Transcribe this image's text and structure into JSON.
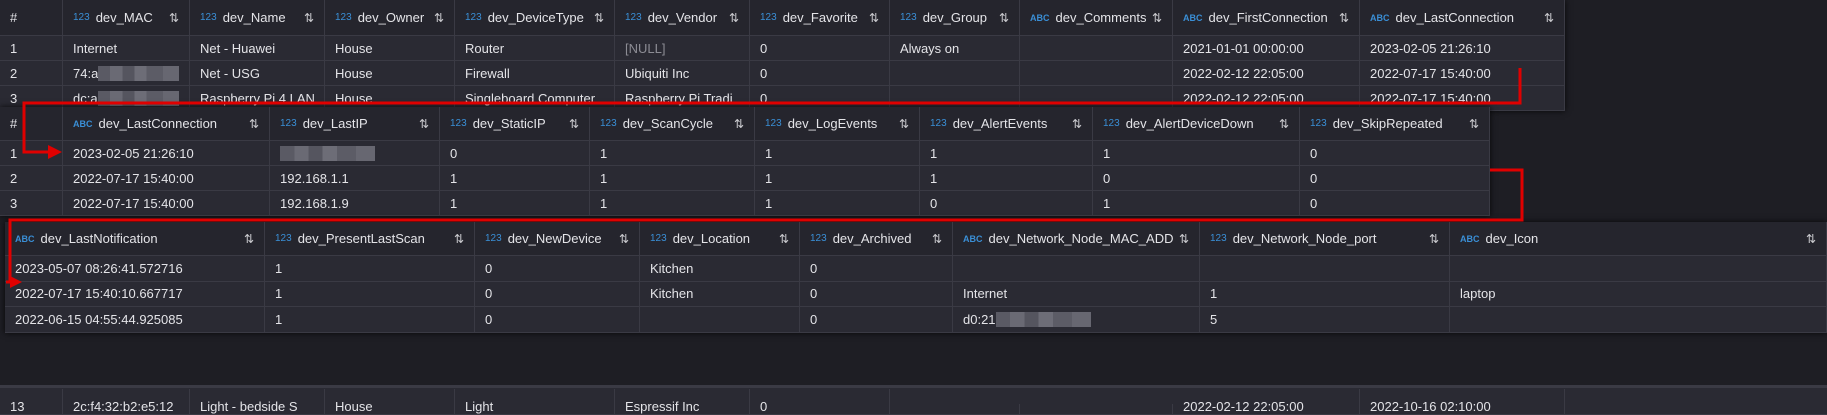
{
  "tables": [
    {
      "id": "table-devices-part1",
      "columns": [
        {
          "label": "#",
          "type": ""
        },
        {
          "label": "dev_MAC",
          "type": "123"
        },
        {
          "label": "dev_Name",
          "type": "123"
        },
        {
          "label": "dev_Owner",
          "type": "123"
        },
        {
          "label": "dev_DeviceType",
          "type": "123"
        },
        {
          "label": "dev_Vendor",
          "type": "123"
        },
        {
          "label": "dev_Favorite",
          "type": "123"
        },
        {
          "label": "dev_Group",
          "type": "123"
        },
        {
          "label": "dev_Comments",
          "type": "ABC"
        },
        {
          "label": "dev_FirstConnection",
          "type": "ABC"
        },
        {
          "label": "dev_LastConnection",
          "type": "ABC"
        }
      ],
      "rows": [
        [
          "1",
          "Internet",
          "Net - Huawei",
          "House",
          "Router",
          "[NULL]",
          "0",
          "Always on",
          "",
          "2021-01-01 00:00:00",
          "2023-02-05 21:26:10"
        ],
        [
          "2",
          "74:a",
          "Net - USG",
          "House",
          "Firewall",
          "Ubiquiti Inc",
          "0",
          "",
          "",
          "2022-02-12 22:05:00",
          "2022-07-17 15:40:00"
        ],
        [
          "3",
          "dc:a",
          "Raspberry Pi 4 LAN",
          "House",
          "Singleboard Computer ...",
          "Raspberry Pi Tradi...",
          "0",
          "",
          "",
          "2022-02-12 22:05:00",
          "2022-07-17 15:40:00"
        ]
      ],
      "blurred": [
        [
          1,
          1
        ],
        [
          2,
          1
        ]
      ]
    },
    {
      "id": "table-devices-part2",
      "columns": [
        {
          "label": "#",
          "type": ""
        },
        {
          "label": "dev_LastConnection",
          "type": "ABC"
        },
        {
          "label": "dev_LastIP",
          "type": "123"
        },
        {
          "label": "dev_StaticIP",
          "type": "123"
        },
        {
          "label": "dev_ScanCycle",
          "type": "123"
        },
        {
          "label": "dev_LogEvents",
          "type": "123"
        },
        {
          "label": "dev_AlertEvents",
          "type": "123"
        },
        {
          "label": "dev_AlertDeviceDown",
          "type": "123"
        },
        {
          "label": "dev_SkipRepeated",
          "type": "123"
        }
      ],
      "rows": [
        [
          "1",
          "2023-02-05 21:26:10",
          "",
          "0",
          "1",
          "1",
          "1",
          "1",
          "0"
        ],
        [
          "2",
          "2022-07-17 15:40:00",
          "192.168.1.1",
          "1",
          "1",
          "1",
          "1",
          "0",
          "0"
        ],
        [
          "3",
          "2022-07-17 15:40:00",
          "192.168.1.9",
          "1",
          "1",
          "1",
          "0",
          "1",
          "0"
        ]
      ],
      "blurred": [
        [
          0,
          2
        ]
      ]
    },
    {
      "id": "table-devices-part3",
      "columns": [
        {
          "label": "dev_LastNotification",
          "type": "ABC"
        },
        {
          "label": "dev_PresentLastScan",
          "type": "123"
        },
        {
          "label": "dev_NewDevice",
          "type": "123"
        },
        {
          "label": "dev_Location",
          "type": "123"
        },
        {
          "label": "dev_Archived",
          "type": "123"
        },
        {
          "label": "dev_Network_Node_MAC_ADDR",
          "type": "ABC"
        },
        {
          "label": "dev_Network_Node_port",
          "type": "123"
        },
        {
          "label": "dev_Icon",
          "type": "ABC"
        }
      ],
      "rows": [
        [
          "2023-05-07 08:26:41.572716",
          "1",
          "0",
          "Kitchen",
          "0",
          "",
          "",
          ""
        ],
        [
          "2022-07-17 15:40:10.667717",
          "1",
          "0",
          "Kitchen",
          "0",
          "Internet",
          "1",
          "laptop"
        ],
        [
          "2022-06-15 04:55:44.925085",
          "1",
          "0",
          "",
          "0",
          "d0:21",
          "5",
          ""
        ]
      ],
      "blurred": [
        [
          2,
          5
        ]
      ]
    }
  ],
  "background_row": [
    "13",
    "2c:f4:32:b2:e5:12",
    "Light - bedside S",
    "House",
    "Light",
    "Espressif Inc",
    "0",
    "",
    "",
    "2022-02-12 22:05:00",
    "2022-10-16 02:10:00"
  ],
  "sort_icon": "sort-arrows-icon",
  "colors": {
    "type_badge": "#3a8fd6",
    "arrow": "#e00000",
    "background": "#2a2a33"
  }
}
